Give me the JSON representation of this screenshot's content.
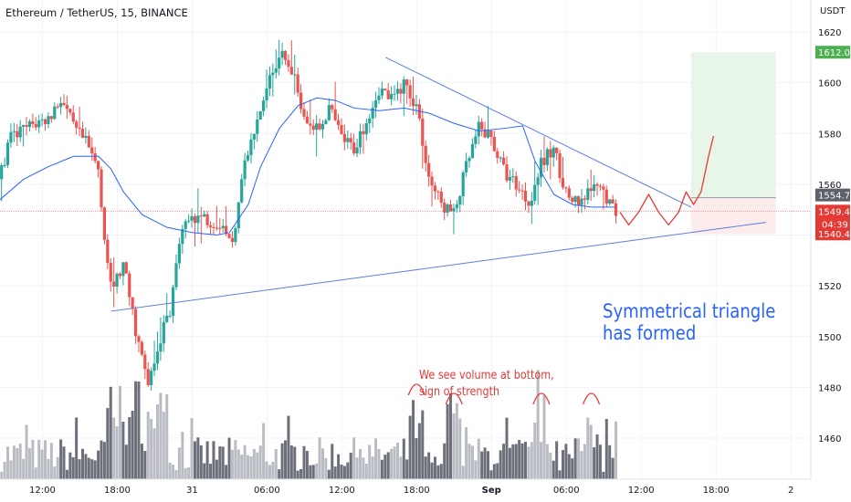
{
  "header": {
    "symbol_title": "Ethereum / TetherUS, 15, BINANCE",
    "price_unit": "USDT"
  },
  "annotations": {
    "pattern_line1": "Symmetrical triangle",
    "pattern_line2": "has formed",
    "volume_line1": "We see volume at bottom,",
    "volume_line2": "sign of strength"
  },
  "colors": {
    "up_candle": "#26a69a",
    "down_candle": "#ef5350",
    "moving_average": "#2962ff",
    "trendline": "#5b7fdc",
    "projection": "#e53935",
    "target_zone": "#e8f5e9",
    "stop_zone": "#fdecec",
    "target_badge": "#4caf50",
    "current_badge": "#e53935",
    "last_badge": "#5d606b"
  },
  "chart_data": {
    "type": "candlestick",
    "symbol": "ETHUSDT",
    "interval": "15",
    "exchange": "BINANCE",
    "y_axis": {
      "unit": "USDT",
      "ylim": [
        1450,
        1628
      ],
      "ticks": [
        1460,
        1480,
        1500,
        1520,
        1540,
        1560,
        1580,
        1600,
        1620
      ]
    },
    "x_axis": {
      "ticks": [
        {
          "t": 12,
          "label": "12:00"
        },
        {
          "t": 18,
          "label": "18:00"
        },
        {
          "t": 24,
          "label": "31"
        },
        {
          "t": 30,
          "label": "06:00"
        },
        {
          "t": 36,
          "label": "12:00"
        },
        {
          "t": 42,
          "label": "18:00"
        },
        {
          "t": 48,
          "label": "Sep"
        },
        {
          "t": 54,
          "label": "06:00"
        },
        {
          "t": 60,
          "label": "12:00"
        },
        {
          "t": 66,
          "label": "18:00"
        },
        {
          "t": 72,
          "label": "2"
        }
      ],
      "range_hours": [
        8.6,
        73.6
      ]
    },
    "price_path": [
      [
        8.6,
        1562
      ],
      [
        9.4,
        1578
      ],
      [
        11.0,
        1583
      ],
      [
        12.5,
        1586
      ],
      [
        13.5,
        1594
      ],
      [
        14.5,
        1582
      ],
      [
        15.5,
        1576
      ],
      [
        16.5,
        1566
      ],
      [
        17.0,
        1538
      ],
      [
        17.5,
        1518
      ],
      [
        18.5,
        1528
      ],
      [
        19.5,
        1502
      ],
      [
        20.5,
        1480
      ],
      [
        21.5,
        1500
      ],
      [
        22.3,
        1512
      ],
      [
        23.0,
        1538
      ],
      [
        24.0,
        1548
      ],
      [
        25.5,
        1546
      ],
      [
        26.5,
        1544
      ],
      [
        27.2,
        1535
      ],
      [
        28.0,
        1565
      ],
      [
        29.0,
        1580
      ],
      [
        30.0,
        1598
      ],
      [
        31.0,
        1612
      ],
      [
        32.0,
        1604
      ],
      [
        33.0,
        1588
      ],
      [
        34.0,
        1581
      ],
      [
        35.0,
        1590
      ],
      [
        36.0,
        1578
      ],
      [
        37.0,
        1574
      ],
      [
        38.0,
        1586
      ],
      [
        39.0,
        1598
      ],
      [
        40.0,
        1593
      ],
      [
        41.0,
        1600
      ],
      [
        42.0,
        1591
      ],
      [
        43.0,
        1562
      ],
      [
        44.0,
        1552
      ],
      [
        45.0,
        1548
      ],
      [
        46.0,
        1567
      ],
      [
        47.0,
        1582
      ],
      [
        48.0,
        1578
      ],
      [
        49.0,
        1565
      ],
      [
        50.0,
        1560
      ],
      [
        51.0,
        1553
      ],
      [
        52.0,
        1568
      ],
      [
        53.0,
        1574
      ],
      [
        54.0,
        1556
      ],
      [
        55.0,
        1551
      ],
      [
        56.0,
        1558
      ],
      [
        57.0,
        1557
      ],
      [
        57.9,
        1549
      ]
    ],
    "moving_average": [
      [
        8.6,
        1554
      ],
      [
        10.5,
        1562
      ],
      [
        12.5,
        1567
      ],
      [
        14.5,
        1571
      ],
      [
        16.5,
        1571
      ],
      [
        17.5,
        1566
      ],
      [
        18.5,
        1557
      ],
      [
        20.0,
        1548
      ],
      [
        22.0,
        1543
      ],
      [
        24.0,
        1541
      ],
      [
        26.0,
        1540
      ],
      [
        27.0,
        1541
      ],
      [
        28.5,
        1552
      ],
      [
        29.5,
        1567
      ],
      [
        31.0,
        1582
      ],
      [
        32.5,
        1591
      ],
      [
        34.0,
        1594
      ],
      [
        35.5,
        1593
      ],
      [
        37.0,
        1590
      ],
      [
        39.0,
        1589
      ],
      [
        41.0,
        1590
      ],
      [
        43.0,
        1588
      ],
      [
        45.0,
        1584
      ],
      [
        47.0,
        1581
      ],
      [
        49.0,
        1582
      ],
      [
        50.5,
        1583
      ],
      [
        51.5,
        1569
      ],
      [
        53.0,
        1556
      ],
      [
        54.5,
        1552
      ],
      [
        56.0,
        1551
      ],
      [
        57.9,
        1551
      ]
    ],
    "trendlines": [
      {
        "name": "triangle-resistance",
        "from": [
          39.5,
          1610
        ],
        "to": [
          64.0,
          1551
        ]
      },
      {
        "name": "triangle-support",
        "from": [
          17.5,
          1510
        ],
        "to": [
          70.0,
          1545
        ]
      }
    ],
    "projection_path": [
      [
        58.3,
        1549
      ],
      [
        59.0,
        1544
      ],
      [
        59.8,
        1549
      ],
      [
        60.6,
        1556
      ],
      [
        61.4,
        1549
      ],
      [
        62.2,
        1544
      ],
      [
        63.0,
        1549
      ],
      [
        63.6,
        1557
      ],
      [
        64.2,
        1552
      ],
      [
        64.8,
        1557
      ],
      [
        65.4,
        1571
      ],
      [
        65.8,
        1579
      ]
    ],
    "long_position": {
      "entry": 1554.7,
      "target": 1612.02,
      "stop": 1540.45,
      "start_hour": 64.0,
      "end_hour": 70.8
    },
    "horizontal_line": {
      "price": 1549.41
    },
    "price_labels": [
      {
        "name": "target",
        "text": "1612.02",
        "price": 1612.02
      },
      {
        "name": "last",
        "text": "1554.70",
        "price": 1554.7
      },
      {
        "name": "current",
        "text": "1549.41",
        "price": 1549.41,
        "countdown": "04:39"
      },
      {
        "name": "stop",
        "text": "1540.45",
        "price": 1540.45
      }
    ],
    "volume": {
      "high_volume_markers_hours": [
        42.0,
        45.0,
        52.0,
        56.0
      ]
    }
  }
}
